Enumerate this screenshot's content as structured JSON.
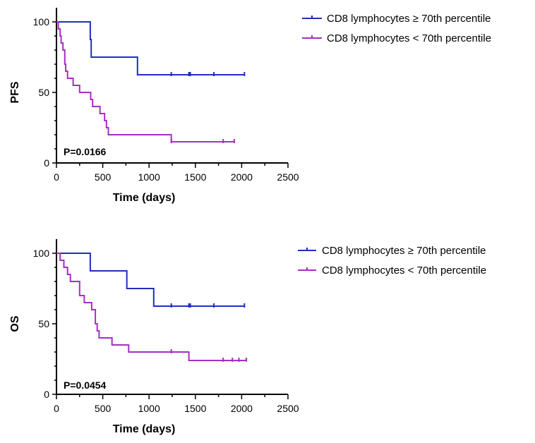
{
  "chart_data": [
    {
      "type": "line",
      "subtype": "kaplan-meier-step",
      "ylabel": "PFS",
      "xlabel": "Time (days)",
      "xlim": [
        0,
        2500
      ],
      "ylim": [
        0,
        100
      ],
      "xticks": [
        "0",
        "500",
        "1000",
        "1500",
        "2000",
        "2500"
      ],
      "yticks": [
        "0",
        "50",
        "100"
      ],
      "grid": false,
      "legend_position": "top-right",
      "annotation": "P=0.0166",
      "series": [
        {
          "name": "CD8 lymphocytes ≥ 70th percentile",
          "color": "#1f2fbf",
          "steps": [
            [
              0,
              100
            ],
            [
              365,
              100
            ],
            [
              365,
              87.5
            ],
            [
              375,
              87.5
            ],
            [
              375,
              75
            ],
            [
              875,
              75
            ],
            [
              875,
              62.5
            ],
            [
              2030,
              62.5
            ]
          ],
          "censored": [
            [
              1240,
              62.5
            ],
            [
              1430,
              62.5
            ],
            [
              1445,
              62.5
            ],
            [
              1700,
              62.5
            ],
            [
              2030,
              62.5
            ]
          ]
        },
        {
          "name": "CD8 lymphocytes < 70th percentile",
          "color": "#a52ec4",
          "steps": [
            [
              0,
              100
            ],
            [
              20,
              100
            ],
            [
              20,
              95
            ],
            [
              40,
              95
            ],
            [
              40,
              90
            ],
            [
              50,
              90
            ],
            [
              50,
              85
            ],
            [
              70,
              85
            ],
            [
              70,
              80
            ],
            [
              90,
              80
            ],
            [
              90,
              70
            ],
            [
              100,
              70
            ],
            [
              100,
              65
            ],
            [
              120,
              65
            ],
            [
              120,
              60
            ],
            [
              180,
              60
            ],
            [
              180,
              55
            ],
            [
              250,
              55
            ],
            [
              250,
              50
            ],
            [
              370,
              50
            ],
            [
              370,
              45
            ],
            [
              390,
              45
            ],
            [
              390,
              40
            ],
            [
              470,
              40
            ],
            [
              470,
              35
            ],
            [
              520,
              35
            ],
            [
              520,
              30
            ],
            [
              540,
              30
            ],
            [
              540,
              25
            ],
            [
              560,
              25
            ],
            [
              560,
              20
            ],
            [
              1240,
              20
            ],
            [
              1240,
              15
            ],
            [
              1920,
              15
            ]
          ],
          "censored": [
            [
              1240,
              15
            ],
            [
              1800,
              15
            ],
            [
              1920,
              15
            ]
          ]
        }
      ]
    },
    {
      "type": "line",
      "subtype": "kaplan-meier-step",
      "ylabel": "OS",
      "xlabel": "Time (days)",
      "xlim": [
        0,
        2500
      ],
      "ylim": [
        0,
        100
      ],
      "xticks": [
        "0",
        "500",
        "1000",
        "1500",
        "2000",
        "2500"
      ],
      "yticks": [
        "0",
        "50",
        "100"
      ],
      "grid": false,
      "legend_position": "top-right",
      "annotation": "P=0.0454",
      "series": [
        {
          "name": "CD8 lymphocytes ≥ 70th percentile",
          "color": "#1f2fbf",
          "steps": [
            [
              0,
              100
            ],
            [
              365,
              100
            ],
            [
              365,
              87.5
            ],
            [
              760,
              87.5
            ],
            [
              760,
              75
            ],
            [
              1050,
              75
            ],
            [
              1050,
              62.5
            ],
            [
              2030,
              62.5
            ]
          ],
          "censored": [
            [
              1240,
              62.5
            ],
            [
              1430,
              62.5
            ],
            [
              1445,
              62.5
            ],
            [
              1700,
              62.5
            ],
            [
              2030,
              62.5
            ]
          ]
        },
        {
          "name": "CD8 lymphocytes < 70th percentile",
          "color": "#a52ec4",
          "steps": [
            [
              0,
              100
            ],
            [
              40,
              100
            ],
            [
              40,
              95
            ],
            [
              80,
              95
            ],
            [
              80,
              90
            ],
            [
              120,
              90
            ],
            [
              120,
              85
            ],
            [
              150,
              85
            ],
            [
              150,
              80
            ],
            [
              250,
              80
            ],
            [
              250,
              70
            ],
            [
              300,
              70
            ],
            [
              300,
              65
            ],
            [
              380,
              65
            ],
            [
              380,
              60
            ],
            [
              420,
              60
            ],
            [
              420,
              50
            ],
            [
              440,
              50
            ],
            [
              440,
              45
            ],
            [
              460,
              45
            ],
            [
              460,
              40
            ],
            [
              600,
              40
            ],
            [
              600,
              35
            ],
            [
              780,
              35
            ],
            [
              780,
              30
            ],
            [
              1430,
              30
            ],
            [
              1430,
              24
            ],
            [
              2050,
              24
            ]
          ],
          "censored": [
            [
              1240,
              30
            ],
            [
              1800,
              24
            ],
            [
              1900,
              24
            ],
            [
              1970,
              24
            ],
            [
              2050,
              24
            ]
          ]
        }
      ]
    }
  ]
}
